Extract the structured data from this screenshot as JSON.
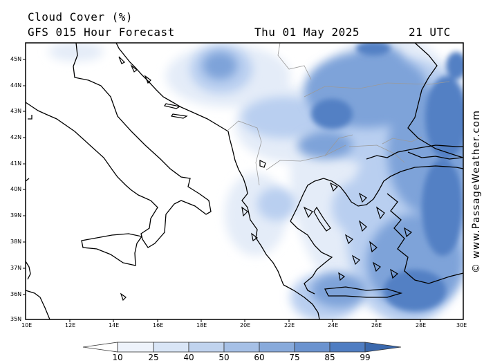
{
  "header": {
    "title": "Cloud Cover (%)",
    "subtitle": "GFS 015 Hour Forecast",
    "date": "Thu 01 May 2025",
    "time": "21 UTC"
  },
  "axes": {
    "lat_labels": [
      "45N",
      "44N",
      "43N",
      "42N",
      "41N",
      "40N",
      "39N",
      "38N",
      "37N",
      "36N",
      "35N"
    ],
    "lon_labels": [
      "10E",
      "12E",
      "14E",
      "16E",
      "18E",
      "20E",
      "22E",
      "24E",
      "26E",
      "28E",
      "30E"
    ]
  },
  "colorbar": {
    "ticks": [
      "10",
      "25",
      "40",
      "50",
      "60",
      "75",
      "85",
      "99"
    ],
    "colors": [
      "#ffffff",
      "#eef3fb",
      "#d9e5f6",
      "#c0d3ee",
      "#a6c0e6",
      "#88aadb",
      "#6b93cf",
      "#4f7dc2",
      "#3a68ad"
    ]
  },
  "watermark": "© www.PassageWeather.com"
}
